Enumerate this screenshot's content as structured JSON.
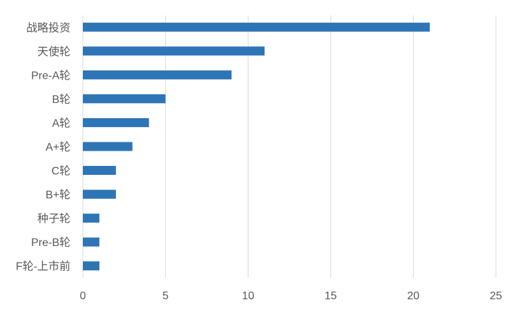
{
  "chart_data": {
    "type": "bar",
    "orientation": "horizontal",
    "categories": [
      "战略投资",
      "天使轮",
      "Pre-A轮",
      "B轮",
      "A轮",
      "A+轮",
      "C轮",
      "B+轮",
      "种子轮",
      "Pre-B轮",
      "F轮-上市前"
    ],
    "values": [
      21,
      11,
      9,
      5,
      4,
      3,
      2,
      2,
      1,
      1,
      1
    ],
    "xlim": [
      0,
      25
    ],
    "xticks": [
      0,
      5,
      10,
      15,
      20,
      25
    ],
    "xtick_labels": [
      "0",
      "5",
      "10",
      "15",
      "20",
      "25"
    ],
    "grid": true,
    "bar_color": "#2E75B6",
    "grid_color": "#D9D9D9",
    "title": "",
    "xlabel": "",
    "ylabel": ""
  }
}
